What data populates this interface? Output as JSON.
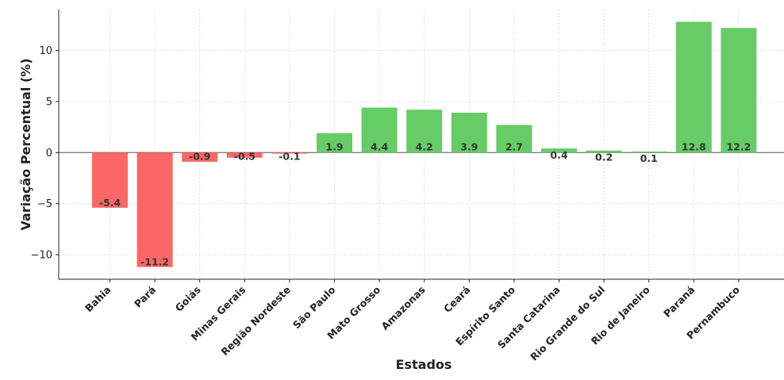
{
  "chart_data": {
    "type": "bar",
    "title": "",
    "xlabel": "Estados",
    "ylabel": "Variação Percentual (%)",
    "categories": [
      "Bahia",
      "Pará",
      "Goiás",
      "Minas Gerais",
      "Região Nordeste",
      "São Paulo",
      "Mato Grosso",
      "Amazonas",
      "Ceará",
      "Espírito Santo",
      "Santa Catarina",
      "Rio Grande do Sul",
      "Rio de Janeiro",
      "Paraná",
      "Pernambuco"
    ],
    "values": [
      -5.4,
      -11.2,
      -0.9,
      -0.5,
      -0.1,
      1.9,
      4.4,
      4.2,
      3.9,
      2.7,
      0.4,
      0.2,
      0.1,
      12.8,
      12.2
    ],
    "value_labels": [
      "-5.4",
      "-11.2",
      "-0.9",
      "-0.5",
      "-0.1",
      "1.9",
      "4.4",
      "4.2",
      "3.9",
      "2.7",
      "0.4",
      "0.2",
      "0.1",
      "12.8",
      "12.2"
    ],
    "ylim": [
      -12.4,
      14.0
    ],
    "yticks": [
      -10,
      -5,
      0,
      5,
      10
    ],
    "ytick_labels": [
      "−10",
      "−5",
      "0",
      "5",
      "10"
    ],
    "grid": true,
    "colors": {
      "positive": "#66cc66",
      "negative": "#ff6666",
      "zero_line": "#555555",
      "grid": "#d9d9d9"
    }
  }
}
